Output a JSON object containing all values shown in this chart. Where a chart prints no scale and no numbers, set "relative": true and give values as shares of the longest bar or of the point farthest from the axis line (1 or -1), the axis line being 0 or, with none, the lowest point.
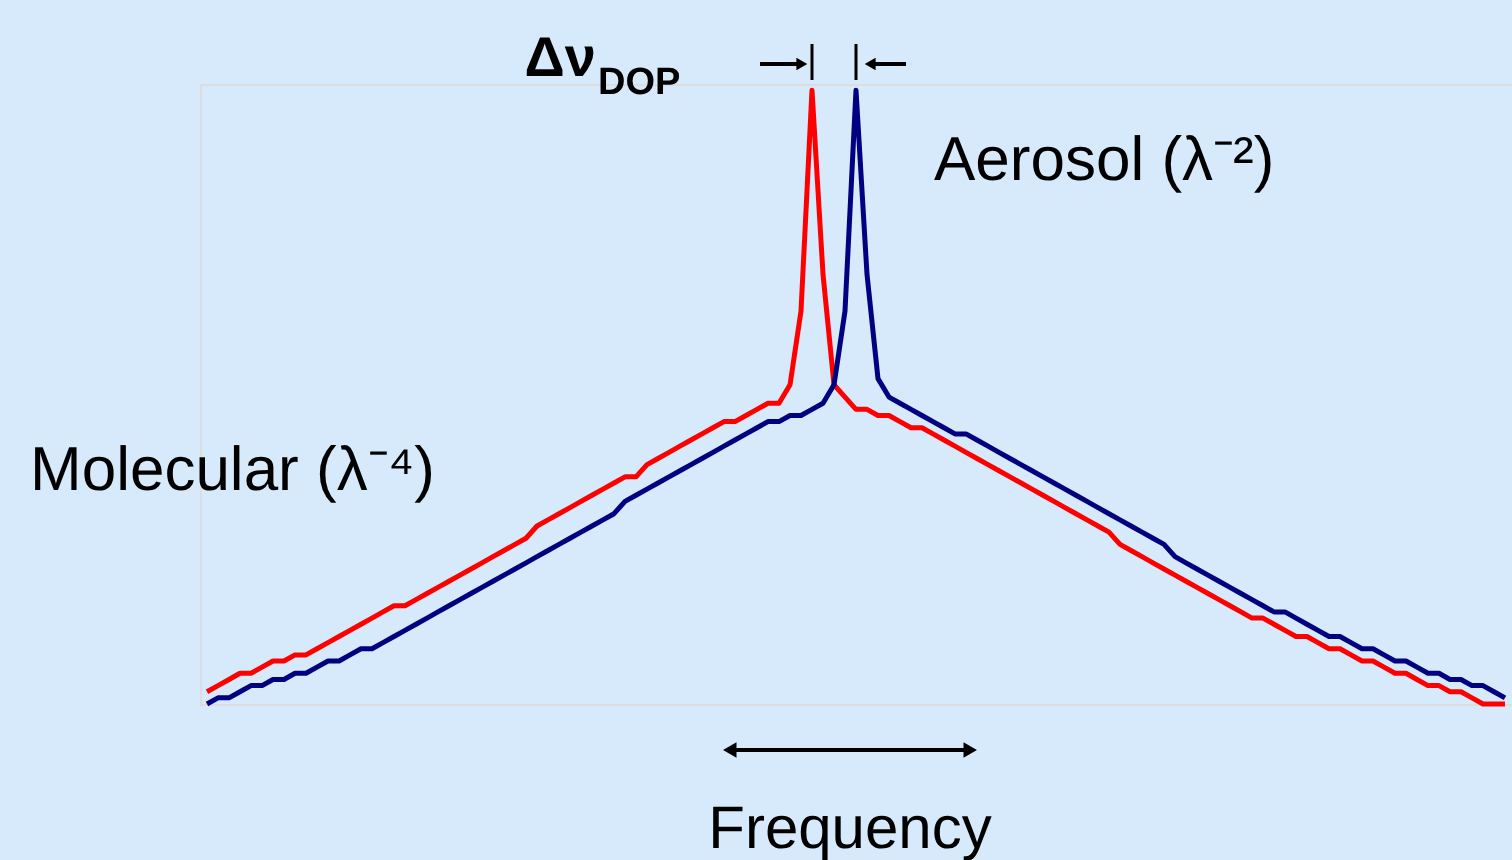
{
  "chart_data": {
    "type": "line",
    "relative": true,
    "xlabel": "Frequency",
    "marker": "none",
    "line_style": "solid",
    "annotations": [
      "Δν$_{DOP}$"
    ],
    "categories": [
      null,
      null,
      null,
      null,
      null,
      null,
      null,
      null,
      null,
      null,
      null,
      null,
      null,
      null,
      null,
      null,
      null,
      null,
      null,
      null,
      null,
      null,
      null,
      null,
      null,
      null,
      null,
      null,
      null,
      null,
      null,
      null,
      null,
      null,
      null,
      null,
      null,
      null,
      null,
      null,
      null,
      null,
      null,
      null,
      null,
      null,
      null,
      null,
      null,
      null,
      null,
      null,
      null,
      null,
      null,
      null,
      null,
      null,
      null,
      null,
      null,
      null,
      null,
      null,
      null,
      null,
      null,
      null,
      null,
      null,
      null,
      null,
      null,
      null,
      null,
      null,
      null,
      null,
      null,
      null,
      null,
      null,
      null,
      null,
      null,
      null,
      null,
      null,
      null,
      null,
      null,
      null,
      null,
      null,
      null,
      null,
      null,
      null,
      null,
      null,
      null,
      null,
      null,
      null,
      null,
      null,
      null,
      null,
      null,
      null,
      null,
      null,
      null,
      null,
      null,
      null,
      null,
      null,
      null
    ],
    "series": [
      {
        "name": "Molecular (λ⁻⁴)",
        "color": "#ff0000",
        "values": [
          0.02,
          0.03,
          0.04,
          0.05,
          0.05,
          0.06,
          0.07,
          0.07,
          0.08,
          0.08,
          0.09,
          0.1,
          0.11,
          0.12,
          0.13,
          0.14,
          0.15,
          0.16,
          0.16,
          0.17,
          0.18,
          0.19,
          0.2,
          0.21,
          0.22,
          0.23,
          0.24,
          0.25,
          0.26,
          0.27,
          0.29,
          0.3,
          0.31,
          0.32,
          0.33,
          0.34,
          0.35,
          0.36,
          0.37,
          0.37,
          0.39,
          0.4,
          0.41,
          0.42,
          0.43,
          0.44,
          0.45,
          0.46,
          0.46,
          0.47,
          0.48,
          0.49,
          0.49,
          0.52,
          0.64,
          1,
          0.7,
          0.52,
          0.5,
          0.48,
          0.48,
          0.47,
          0.47,
          0.46,
          0.45,
          0.45,
          0.44,
          0.43,
          0.42,
          0.41,
          0.4,
          0.39,
          0.38,
          0.37,
          0.36,
          0.35,
          0.34,
          0.33,
          0.32,
          0.31,
          0.3,
          0.29,
          0.28,
          0.26,
          0.25,
          0.24,
          0.23,
          0.22,
          0.21,
          0.2,
          0.19,
          0.18,
          0.17,
          0.16,
          0.15,
          0.14,
          0.14,
          0.13,
          0.12,
          0.11,
          0.11,
          0.1,
          0.09,
          0.09,
          0.08,
          0.07,
          0.07,
          0.06,
          0.05,
          0.05,
          0.04,
          0.03,
          0.03,
          0.02,
          0.02,
          0.01,
          0,
          0,
          0
        ]
      },
      {
        "name": "Aerosol (λ⁻²)",
        "color": "#000080",
        "values": [
          0,
          0.01,
          0.01,
          0.02,
          0.03,
          0.03,
          0.04,
          0.04,
          0.05,
          0.05,
          0.06,
          0.07,
          0.07,
          0.08,
          0.09,
          0.09,
          0.1,
          0.11,
          0.12,
          0.13,
          0.14,
          0.15,
          0.16,
          0.17,
          0.18,
          0.19,
          0.2,
          0.21,
          0.22,
          0.23,
          0.24,
          0.25,
          0.26,
          0.27,
          0.28,
          0.29,
          0.3,
          0.31,
          0.33,
          0.34,
          0.35,
          0.36,
          0.37,
          0.38,
          0.39,
          0.4,
          0.41,
          0.42,
          0.43,
          0.44,
          0.45,
          0.46,
          0.46,
          0.47,
          0.47,
          0.48,
          0.49,
          0.52,
          0.64,
          1,
          0.7,
          0.53,
          0.5,
          0.49,
          0.48,
          0.47,
          0.46,
          0.45,
          0.44,
          0.44,
          0.43,
          0.42,
          0.41,
          0.4,
          0.39,
          0.38,
          0.37,
          0.36,
          0.35,
          0.34,
          0.33,
          0.32,
          0.31,
          0.3,
          0.29,
          0.28,
          0.27,
          0.26,
          0.24,
          0.23,
          0.22,
          0.21,
          0.2,
          0.19,
          0.18,
          0.17,
          0.16,
          0.15,
          0.15,
          0.14,
          0.13,
          0.12,
          0.11,
          0.11,
          0.1,
          0.09,
          0.09,
          0.08,
          0.07,
          0.07,
          0.06,
          0.05,
          0.05,
          0.04,
          0.04,
          0.03,
          0.03,
          0.02,
          0.01
        ]
      }
    ]
  }
}
